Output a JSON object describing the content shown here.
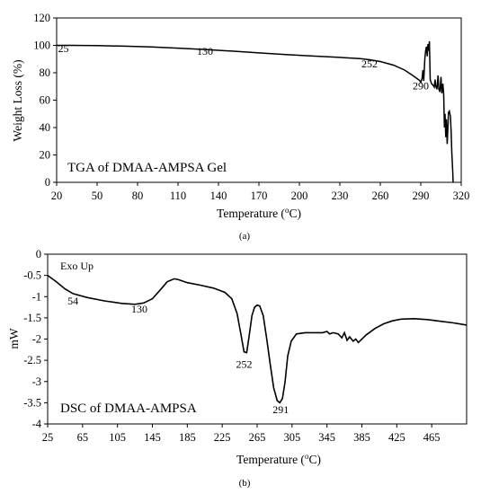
{
  "chart_data": [
    {
      "type": "line",
      "title": "TGA of DMAA-AMPSA Gel",
      "panel_label": "(a)",
      "xlabel": "Temperature (",
      "xlabel_sup": "o",
      "xlabel_end": "C)",
      "ylabel": "Weight Loss (%)",
      "xlim": [
        20,
        320
      ],
      "ylim": [
        0,
        120
      ],
      "xticks": [
        20,
        50,
        80,
        110,
        140,
        170,
        200,
        230,
        260,
        290,
        320
      ],
      "yticks": [
        0,
        20,
        40,
        60,
        80,
        100,
        120
      ],
      "annotations": [
        {
          "text": "25",
          "x": 25,
          "y": 95
        },
        {
          "text": "130",
          "x": 130,
          "y": 93
        },
        {
          "text": "252",
          "x": 252,
          "y": 84
        },
        {
          "text": "290",
          "x": 290,
          "y": 68
        }
      ],
      "series": [
        {
          "points": [
            [
              20,
              100
            ],
            [
              30,
              100
            ],
            [
              50,
              99.8
            ],
            [
              70,
              99.4
            ],
            [
              90,
              98.8
            ],
            [
              110,
              98
            ],
            [
              130,
              97
            ],
            [
              150,
              95.8
            ],
            [
              170,
              94.5
            ],
            [
              190,
              93.3
            ],
            [
              210,
              92.2
            ],
            [
              230,
              91.2
            ],
            [
              245,
              90.3
            ],
            [
              252,
              89.5
            ],
            [
              260,
              88.2
            ],
            [
              270,
              85.5
            ],
            [
              278,
              82
            ],
            [
              284,
              78
            ],
            [
              289,
              74.5
            ],
            [
              290,
              73
            ],
            [
              291,
              76
            ],
            [
              291.6,
              82
            ],
            [
              292.2,
              74
            ],
            [
              293,
              90
            ],
            [
              293.6,
              96
            ],
            [
              294.2,
              99
            ],
            [
              294.8,
              92
            ],
            [
              295.3,
              101
            ],
            [
              295.9,
              96
            ],
            [
              296.4,
              103
            ],
            [
              297,
              75
            ],
            [
              298,
              72
            ],
            [
              299,
              71
            ],
            [
              300,
              69.5
            ],
            [
              300.6,
              75
            ],
            [
              301.2,
              70
            ],
            [
              302,
              68
            ],
            [
              302.8,
              78
            ],
            [
              303.4,
              68
            ],
            [
              304.2,
              66
            ],
            [
              305,
              77
            ],
            [
              305.6,
              65
            ],
            [
              306.4,
              72
            ],
            [
              307,
              64
            ],
            [
              307.5,
              40
            ],
            [
              308,
              50
            ],
            [
              308.5,
              33
            ],
            [
              309,
              46
            ],
            [
              309.6,
              28
            ],
            [
              310.1,
              40
            ],
            [
              310.5,
              51
            ],
            [
              311.2,
              52
            ],
            [
              312,
              48
            ],
            [
              312.6,
              35
            ],
            [
              313,
              22
            ],
            [
              313.6,
              10
            ],
            [
              314,
              0
            ]
          ]
        }
      ]
    },
    {
      "type": "line",
      "title": "DSC of DMAA-AMPSA",
      "panel_label": "(b)",
      "xlabel": "Temperature (",
      "xlabel_sup": "o",
      "xlabel_end": "C)",
      "ylabel": "mW",
      "note": "Exo Up",
      "xlim": [
        25,
        505
      ],
      "ylim": [
        -4,
        0
      ],
      "xticks": [
        25,
        65,
        105,
        145,
        185,
        225,
        265,
        305,
        345,
        385,
        425,
        465
      ],
      "yticks": [
        0,
        -0.5,
        -1,
        -1.5,
        -2,
        -2.5,
        -3,
        -3.5,
        -4
      ],
      "ytick_labels": [
        "0",
        "-0.5",
        "-1",
        "-1.5",
        "-2",
        "-2.5",
        "-3",
        "-3.5",
        "-4"
      ],
      "annotations": [
        {
          "text": "54",
          "x": 54,
          "y": -1.18
        },
        {
          "text": "130",
          "x": 130,
          "y": -1.38
        },
        {
          "text": "252",
          "x": 250,
          "y": -2.68
        },
        {
          "text": "291",
          "x": 292,
          "y": -3.75
        }
      ],
      "series": [
        {
          "points": [
            [
              25,
              -0.5
            ],
            [
              35,
              -0.65
            ],
            [
              45,
              -0.82
            ],
            [
              54,
              -0.93
            ],
            [
              70,
              -1.02
            ],
            [
              90,
              -1.1
            ],
            [
              110,
              -1.16
            ],
            [
              125,
              -1.18
            ],
            [
              135,
              -1.15
            ],
            [
              145,
              -1.05
            ],
            [
              155,
              -0.82
            ],
            [
              162,
              -0.65
            ],
            [
              170,
              -0.58
            ],
            [
              175,
              -0.6
            ],
            [
              185,
              -0.67
            ],
            [
              200,
              -0.73
            ],
            [
              215,
              -0.8
            ],
            [
              228,
              -0.9
            ],
            [
              236,
              -1.05
            ],
            [
              242,
              -1.4
            ],
            [
              247,
              -1.95
            ],
            [
              250,
              -2.3
            ],
            [
              253,
              -2.32
            ],
            [
              256,
              -1.9
            ],
            [
              259,
              -1.45
            ],
            [
              262,
              -1.25
            ],
            [
              265,
              -1.2
            ],
            [
              268,
              -1.22
            ],
            [
              272,
              -1.45
            ],
            [
              276,
              -2.0
            ],
            [
              280,
              -2.6
            ],
            [
              284,
              -3.15
            ],
            [
              288,
              -3.45
            ],
            [
              291,
              -3.5
            ],
            [
              294,
              -3.4
            ],
            [
              297,
              -3.0
            ],
            [
              300,
              -2.4
            ],
            [
              304,
              -2.05
            ],
            [
              310,
              -1.88
            ],
            [
              320,
              -1.85
            ],
            [
              330,
              -1.85
            ],
            [
              340,
              -1.85
            ],
            [
              345,
              -1.82
            ],
            [
              348,
              -1.88
            ],
            [
              352,
              -1.85
            ],
            [
              358,
              -1.88
            ],
            [
              362,
              -1.97
            ],
            [
              365,
              -1.85
            ],
            [
              368,
              -2.03
            ],
            [
              371,
              -1.95
            ],
            [
              375,
              -2.05
            ],
            [
              378,
              -2.0
            ],
            [
              381,
              -2.08
            ],
            [
              390,
              -1.9
            ],
            [
              400,
              -1.75
            ],
            [
              410,
              -1.64
            ],
            [
              420,
              -1.57
            ],
            [
              430,
              -1.53
            ],
            [
              445,
              -1.52
            ],
            [
              460,
              -1.54
            ],
            [
              475,
              -1.58
            ],
            [
              490,
              -1.62
            ],
            [
              505,
              -1.67
            ]
          ]
        }
      ]
    }
  ]
}
